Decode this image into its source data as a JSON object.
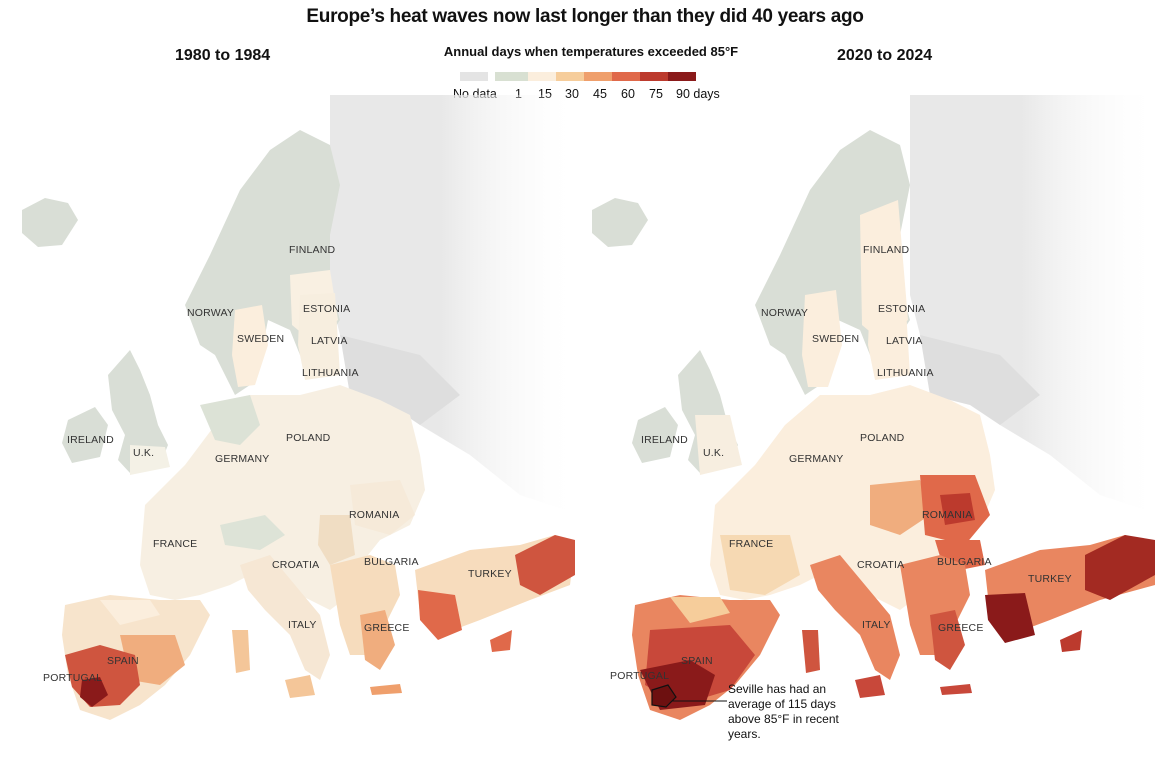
{
  "title": "Europe’s heat waves now last longer than they did 40 years ago",
  "panels": [
    {
      "title": "1980 to 1984"
    },
    {
      "title": "2020 to 2024"
    }
  ],
  "legend": {
    "title": "Annual days when temperatures exceeded 85°F",
    "no_data_label": "No data",
    "ticks": [
      "1",
      "15",
      "30",
      "45",
      "60",
      "75",
      "90 days"
    ],
    "colors": [
      "#e4e4e4",
      "#d8e0d2",
      "#fbeedd",
      "#f6cd9b",
      "#ef9f6c",
      "#e0694a",
      "#bc3a2d",
      "#8a1a1a"
    ]
  },
  "countries": {
    "finland": "FINLAND",
    "norway": "NORWAY",
    "sweden": "SWEDEN",
    "estonia": "ESTONIA",
    "latvia": "LATVIA",
    "lithuania": "LITHUANIA",
    "ireland": "IRELAND",
    "uk": "U.K.",
    "germany": "GERMANY",
    "poland": "POLAND",
    "romania": "ROMANIA",
    "france": "FRANCE",
    "croatia": "CROATIA",
    "bulgaria": "BULGARIA",
    "turkey": "TURKEY",
    "italy": "ITALY",
    "greece": "GREECE",
    "spain": "SPAIN",
    "portugal": "PORTUGAL"
  },
  "annotation": "Seville has had an average of 115 days above 85°F in recent years."
}
